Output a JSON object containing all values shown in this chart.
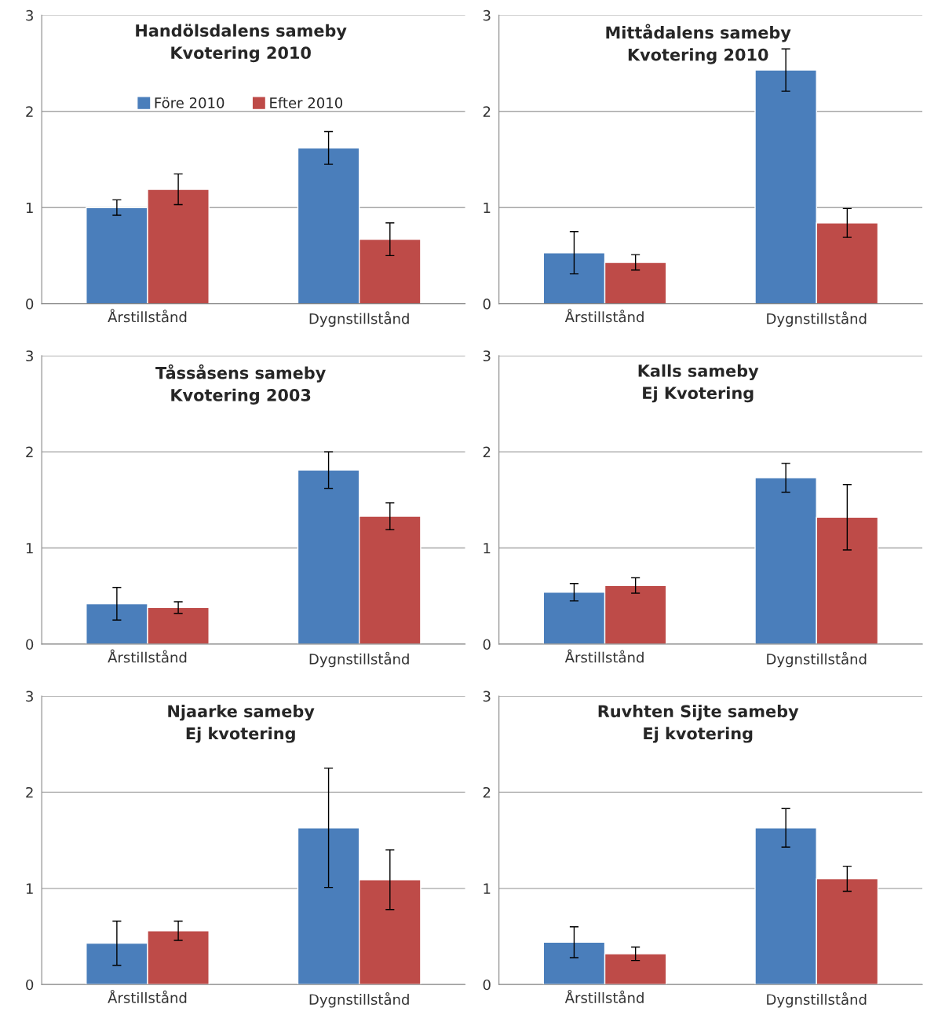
{
  "chart_data": [
    {
      "type": "bar",
      "title": "Handölsdalens sameby\nKvotering 2010",
      "categories": [
        "Årstillstånd",
        "Dygnstillstånd"
      ],
      "ylim": [
        0,
        3
      ],
      "yticks": [
        0,
        1,
        2,
        3
      ],
      "grid": "y",
      "legend": "top",
      "series": [
        {
          "name": "Före 2010",
          "color": "#4a7ebb",
          "values": [
            1.0,
            1.62
          ],
          "errors": [
            0.08,
            0.17
          ]
        },
        {
          "name": "Efter 2010",
          "color": "#be4b48",
          "values": [
            1.19,
            0.67
          ],
          "errors": [
            0.16,
            0.17
          ]
        }
      ]
    },
    {
      "type": "bar",
      "title": "Mittådalens sameby\nKvotering 2010",
      "categories": [
        "Årstillstånd",
        "Dygnstillstånd"
      ],
      "ylim": [
        0,
        3
      ],
      "yticks": [
        0,
        1,
        2,
        3
      ],
      "grid": "y",
      "series": [
        {
          "color": "#4a7ebb",
          "values": [
            0.53,
            2.43
          ],
          "errors": [
            0.22,
            0.22
          ]
        },
        {
          "color": "#be4b48",
          "values": [
            0.43,
            0.84
          ],
          "errors": [
            0.08,
            0.15
          ]
        }
      ]
    },
    {
      "type": "bar",
      "title": "Tåssåsens sameby\nKvotering 2003",
      "categories": [
        "Årstillstånd",
        "Dygnstillstånd"
      ],
      "ylim": [
        0,
        3
      ],
      "yticks": [
        0,
        1,
        2,
        3
      ],
      "grid": "y",
      "series": [
        {
          "color": "#4a7ebb",
          "values": [
            0.42,
            1.81
          ],
          "errors": [
            0.17,
            0.19
          ]
        },
        {
          "color": "#be4b48",
          "values": [
            0.38,
            1.33
          ],
          "errors": [
            0.06,
            0.14
          ]
        }
      ]
    },
    {
      "type": "bar",
      "title": "Kalls sameby\nEj Kvotering",
      "categories": [
        "Årstillstånd",
        "Dygnstillstånd"
      ],
      "ylim": [
        0,
        3
      ],
      "yticks": [
        0,
        1,
        2,
        3
      ],
      "grid": "y",
      "series": [
        {
          "color": "#4a7ebb",
          "values": [
            0.54,
            1.73
          ],
          "errors": [
            0.09,
            0.15
          ]
        },
        {
          "color": "#be4b48",
          "values": [
            0.61,
            1.32
          ],
          "errors": [
            0.08,
            0.34
          ]
        }
      ]
    },
    {
      "type": "bar",
      "title": "Njaarke sameby\nEj kvotering",
      "categories": [
        "Årstillstånd",
        "Dygnstillstånd"
      ],
      "ylim": [
        0,
        3
      ],
      "yticks": [
        0,
        1,
        2,
        3
      ],
      "grid": "y",
      "series": [
        {
          "color": "#4a7ebb",
          "values": [
            0.43,
            1.63
          ],
          "errors": [
            0.23,
            0.62
          ]
        },
        {
          "color": "#be4b48",
          "values": [
            0.56,
            1.09
          ],
          "errors": [
            0.1,
            0.31
          ]
        }
      ]
    },
    {
      "type": "bar",
      "title": "Ruvhten Sijte sameby\nEj kvotering",
      "categories": [
        "Årstillstånd",
        "Dygnstillstånd"
      ],
      "ylim": [
        0,
        3
      ],
      "yticks": [
        0,
        1,
        2,
        3
      ],
      "grid": "y",
      "series": [
        {
          "color": "#4a7ebb",
          "values": [
            0.44,
            1.63
          ],
          "errors": [
            0.16,
            0.2
          ]
        },
        {
          "color": "#be4b48",
          "values": [
            0.32,
            1.1
          ],
          "errors": [
            0.07,
            0.13
          ]
        }
      ]
    }
  ]
}
